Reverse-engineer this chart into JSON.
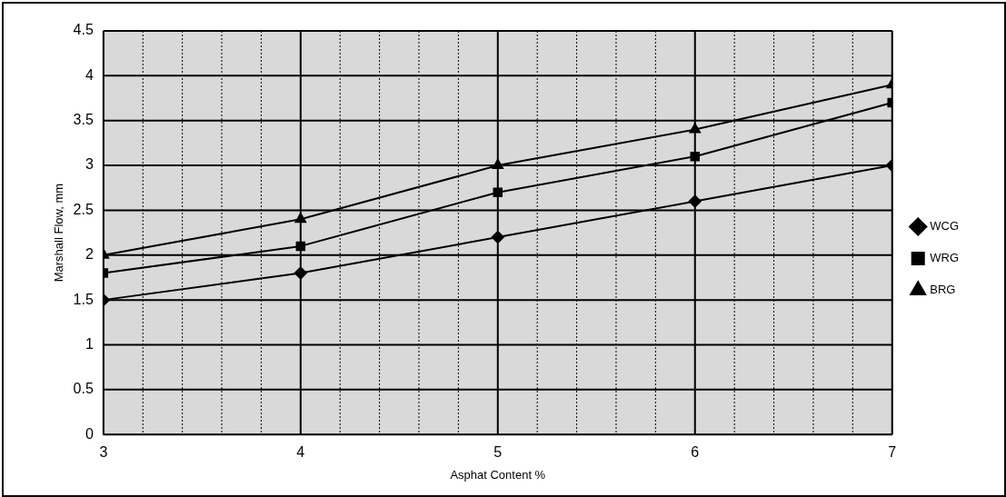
{
  "chart_data": {
    "type": "line",
    "xlabel": "Asphat Content %",
    "ylabel": "Marshall Flow, mm",
    "x": [
      3,
      4,
      5,
      6,
      7
    ],
    "series": [
      {
        "name": "WCG",
        "color": "#000000",
        "marker": "diamond",
        "values": [
          1.5,
          1.8,
          2.2,
          2.6,
          3.0
        ]
      },
      {
        "name": "WRG",
        "color": "#000000",
        "marker": "square",
        "values": [
          1.8,
          2.1,
          2.7,
          3.1,
          3.7
        ]
      },
      {
        "name": "BRG",
        "color": "#000000",
        "marker": "triangle",
        "values": [
          2.0,
          2.4,
          3.0,
          3.4,
          3.9
        ]
      }
    ],
    "xlim": [
      3,
      7
    ],
    "xticks": [
      3,
      {
        "value": 3.2,
        "label": null
      },
      {
        "value": 3.4,
        "label": null
      },
      {
        "value": 3.6,
        "label": null
      },
      {
        "value": 3.8,
        "label": null
      },
      4,
      {
        "value": 4.2,
        "label": null
      },
      {
        "value": 4.4,
        "label": null
      },
      {
        "value": 4.6,
        "label": null
      },
      {
        "value": 4.8,
        "label": null
      },
      5,
      {
        "value": 5.2,
        "label": null
      },
      {
        "value": 5.4,
        "label": null
      },
      {
        "value": 5.6,
        "label": null
      },
      {
        "value": 5.8,
        "label": null
      },
      6,
      {
        "value": 6.2,
        "label": null
      },
      {
        "value": 6.4,
        "label": null
      },
      {
        "value": 6.6,
        "label": null
      },
      {
        "value": 6.8,
        "label": null
      },
      7
    ],
    "ylim": [
      0,
      4.5
    ],
    "yticks": [
      0,
      0.5,
      1,
      1.5,
      2,
      2.5,
      3,
      3.5,
      4,
      4.5
    ],
    "grid": true,
    "legend": "right",
    "line_style": "solid"
  }
}
